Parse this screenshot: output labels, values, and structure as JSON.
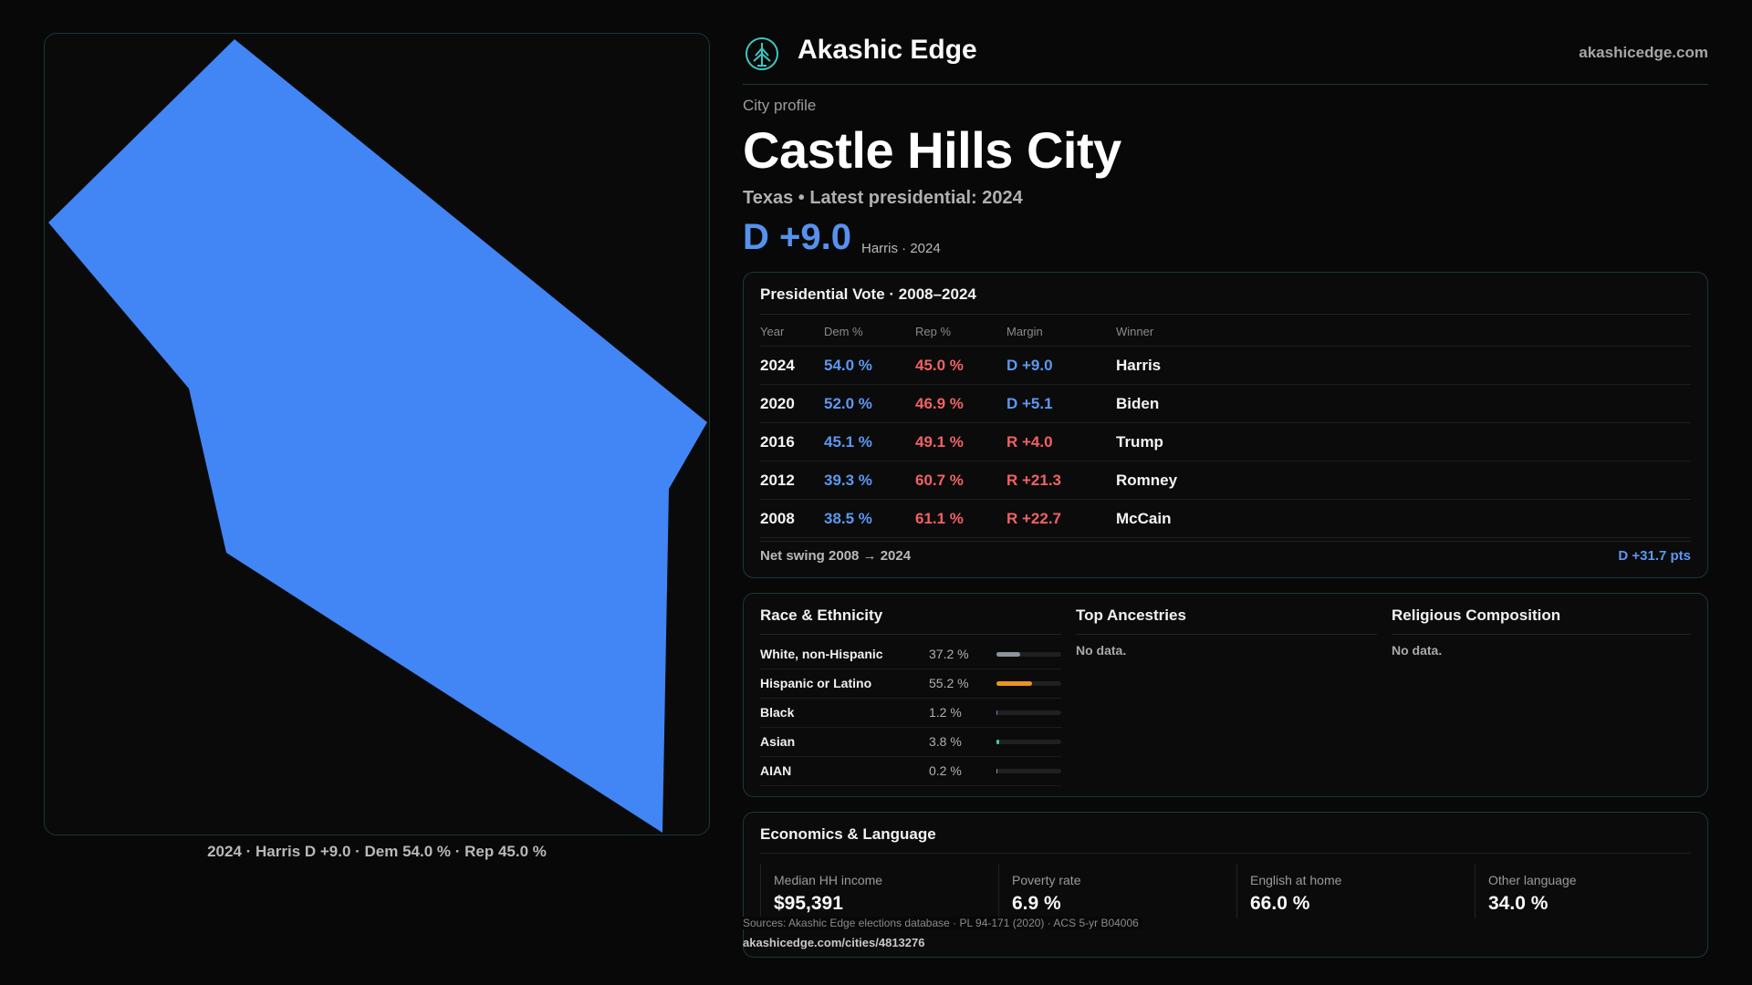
{
  "map": {
    "caption": "2024 · Harris D +9.0 · Dem 54.0 % · Rep 45.0 %",
    "fill_color": "#4285f4"
  },
  "header": {
    "brand": "Akashic Edge",
    "domain": "akashicedge.com",
    "logo_icon": "tree-logo-icon"
  },
  "profile": {
    "eyebrow": "City profile",
    "name": "Castle Hills City",
    "subtitle": "Texas • Latest presidential: 2024",
    "margin": "D +9.0",
    "margin_note": "Harris · 2024"
  },
  "votes": {
    "title": "Presidential Vote · 2008–2024",
    "columns": [
      "Year",
      "Dem %",
      "Rep %",
      "Margin",
      "Winner"
    ],
    "rows": [
      {
        "year": "2024",
        "dem": "54.0 %",
        "rep": "45.0 %",
        "margin": "D +9.0",
        "winner": "Harris",
        "party": "dem"
      },
      {
        "year": "2020",
        "dem": "52.0 %",
        "rep": "46.9 %",
        "margin": "D +5.1",
        "winner": "Biden",
        "party": "dem"
      },
      {
        "year": "2016",
        "dem": "45.1 %",
        "rep": "49.1 %",
        "margin": "R +4.0",
        "winner": "Trump",
        "party": "rep"
      },
      {
        "year": "2012",
        "dem": "39.3 %",
        "rep": "60.7 %",
        "margin": "R +21.3",
        "winner": "Romney",
        "party": "rep"
      },
      {
        "year": "2008",
        "dem": "38.5 %",
        "rep": "61.1 %",
        "margin": "R +22.7",
        "winner": "McCain",
        "party": "rep"
      }
    ],
    "swing_label": "Net swing 2008 → 2024",
    "swing_value": "D +31.7 pts",
    "colors": {
      "dem": "#5d97f1",
      "rep": "#f06262"
    }
  },
  "race": {
    "title": "Race & Ethnicity",
    "rows": [
      {
        "label": "White, non-Hispanic",
        "pct_text": "37.2 %",
        "fraction": 0.372,
        "color": "#8e939b"
      },
      {
        "label": "Hispanic or Latino",
        "pct_text": "55.2 %",
        "fraction": 0.552,
        "color": "#e8961e"
      },
      {
        "label": "Black",
        "pct_text": "1.2 %",
        "fraction": 0.012,
        "color": "#6c7cf0"
      },
      {
        "label": "Asian",
        "pct_text": "3.8 %",
        "fraction": 0.038,
        "color": "#3fd0a4"
      },
      {
        "label": "AIAN",
        "pct_text": "0.2 %",
        "fraction": 0.002,
        "color": "#8e939b"
      }
    ]
  },
  "ancestries": {
    "title": "Top Ancestries",
    "empty": "No data."
  },
  "religion": {
    "title": "Religious Composition",
    "empty": "No data."
  },
  "economics": {
    "title": "Economics & Language",
    "stats": [
      {
        "label": "Median HH income",
        "value": "$95,391"
      },
      {
        "label": "Poverty rate",
        "value": "6.9 %"
      },
      {
        "label": "English at home",
        "value": "66.0 %"
      },
      {
        "label": "Other language",
        "value": "34.0 %"
      }
    ]
  },
  "footer": {
    "sources": "Sources: Akashic Edge elections database · PL 94-171 (2020) · ACS 5-yr B04006",
    "url": "akashicedge.com/cities/4813276"
  }
}
